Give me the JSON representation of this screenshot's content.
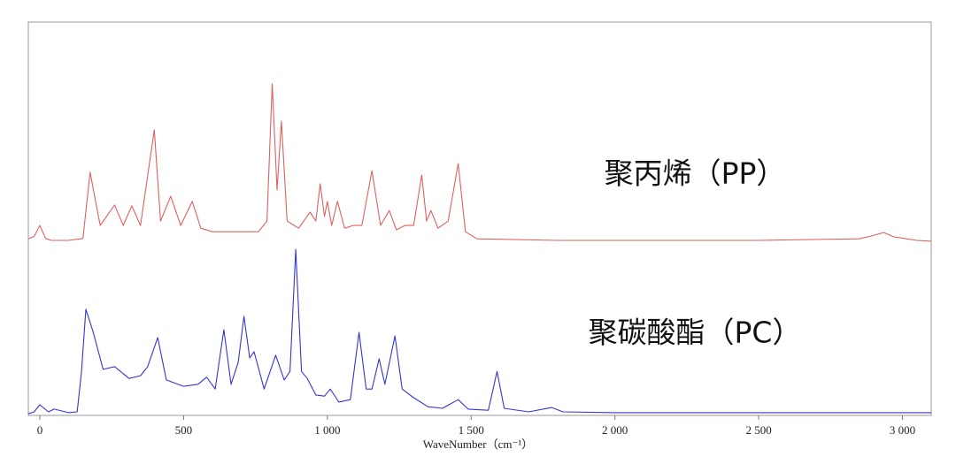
{
  "chart_data": {
    "type": "line",
    "xlabel": "WaveNumber（cm⁻¹）",
    "xlim": [
      -40,
      3100
    ],
    "xticks": [
      0,
      500,
      {
        "value": 1000,
        "label": "1 000"
      },
      {
        "value": 1500,
        "label": "1 500"
      },
      {
        "value": 2000,
        "label": "2 000"
      },
      {
        "value": 2500,
        "label": "2 500"
      },
      {
        "value": 3000,
        "label": "3 000"
      }
    ],
    "ylim": [
      0,
      100
    ],
    "series": [
      {
        "name": "聚丙烯（PP）",
        "color": "#e06060",
        "x": [
          -40,
          -20,
          0,
          20,
          40,
          100,
          150,
          175,
          210,
          260,
          290,
          320,
          350,
          398,
          420,
          455,
          490,
          530,
          560,
          600,
          700,
          760,
          790,
          808,
          825,
          840,
          860,
          900,
          940,
          960,
          975,
          990,
          1000,
          1015,
          1035,
          1060,
          1090,
          1120,
          1155,
          1185,
          1215,
          1240,
          1270,
          1300,
          1328,
          1345,
          1360,
          1385,
          1420,
          1455,
          1480,
          1520,
          1800,
          2500,
          2850,
          2880,
          2935,
          2970,
          3050,
          3100
        ],
        "values": [
          44.9,
          45.5,
          48.3,
          45.0,
          44.5,
          44.5,
          45.0,
          61.8,
          48.3,
          53.5,
          48.3,
          53.3,
          48.3,
          72.6,
          49.4,
          55.7,
          48.3,
          54.4,
          47.6,
          46.7,
          46.7,
          46.7,
          49.4,
          84.3,
          57.3,
          74.8,
          49.4,
          47.6,
          51.7,
          49.4,
          58.9,
          50.6,
          54.4,
          48.3,
          54.4,
          47.6,
          48.3,
          48.3,
          62.2,
          48.3,
          52.1,
          47.2,
          48.3,
          48.3,
          61.1,
          49.4,
          52.1,
          47.6,
          49.4,
          64.0,
          46.7,
          44.9,
          44.5,
          44.5,
          44.9,
          45.4,
          46.5,
          45.4,
          44.5,
          44.3
        ]
      },
      {
        "name": "聚碳酸酯（PC）",
        "color": "#3535d0",
        "x": [
          -40,
          -20,
          0,
          30,
          50,
          100,
          130,
          145,
          160,
          185,
          220,
          260,
          310,
          350,
          375,
          410,
          440,
          500,
          550,
          580,
          610,
          640,
          665,
          690,
          710,
          730,
          745,
          780,
          820,
          850,
          870,
          890,
          910,
          930,
          960,
          990,
          1010,
          1040,
          1080,
          1110,
          1135,
          1155,
          1180,
          1200,
          1235,
          1260,
          1300,
          1350,
          1400,
          1455,
          1490,
          1560,
          1590,
          1615,
          1700,
          1780,
          1820,
          2000,
          3100
        ],
        "values": [
          0.4,
          0.9,
          2.7,
          0.9,
          1.6,
          0.7,
          0.9,
          11.2,
          27.0,
          21.3,
          11.7,
          12.4,
          9.4,
          10.1,
          12.4,
          19.8,
          9.0,
          7.4,
          7.9,
          9.7,
          6.7,
          21.8,
          7.9,
          13.5,
          25.2,
          14.6,
          16.2,
          6.7,
          15.3,
          9.0,
          11.2,
          42.2,
          11.2,
          9.4,
          5.2,
          4.9,
          6.7,
          3.4,
          4.0,
          21.1,
          6.7,
          6.7,
          14.4,
          7.9,
          20.2,
          6.7,
          4.5,
          2.2,
          1.8,
          4.0,
          1.6,
          1.3,
          11.2,
          1.8,
          0.9,
          2.0,
          0.9,
          0.7,
          0.7
        ]
      }
    ]
  }
}
